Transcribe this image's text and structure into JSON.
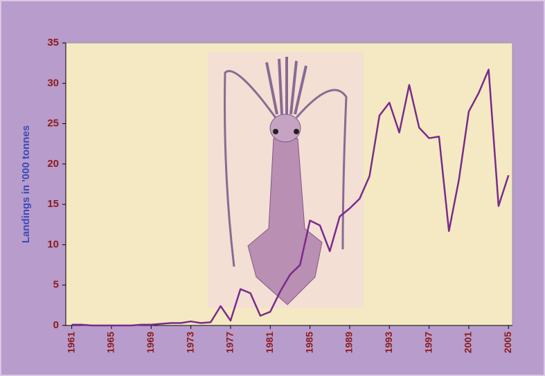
{
  "chart_data": {
    "type": "line",
    "y_axis_label": "Landings in '000 tonnes",
    "x": [
      1961,
      1962,
      1963,
      1964,
      1965,
      1966,
      1967,
      1968,
      1969,
      1970,
      1971,
      1972,
      1973,
      1974,
      1975,
      1976,
      1977,
      1978,
      1979,
      1980,
      1981,
      1982,
      1983,
      1984,
      1985,
      1986,
      1987,
      1988,
      1989,
      1990,
      1991,
      1992,
      1993,
      1994,
      1995,
      1996,
      1997,
      1998,
      1999,
      2000,
      2001,
      2002,
      2003,
      2004,
      2005
    ],
    "series": [
      {
        "color": "#7a2a8c",
        "values": [
          0.1,
          0.1,
          0,
          0,
          0,
          0,
          0,
          0.1,
          0.1,
          0.2,
          0.3,
          0.3,
          0.5,
          0.3,
          0.4,
          2.4,
          0.6,
          4.5,
          4.0,
          1.2,
          1.7,
          4.2,
          6.3,
          7.5,
          13.0,
          12.4,
          9.2,
          13.5,
          14.5,
          15.7,
          18.5,
          26.0,
          27.6,
          23.9,
          29.8,
          24.5,
          23.2,
          23.4,
          11.7,
          18.0,
          26.5,
          28.8,
          31.7,
          14.8,
          18.6
        ]
      }
    ],
    "xlim": [
      1960.4,
      2005.4
    ],
    "xticks": [
      1961,
      1965,
      1969,
      1973,
      1977,
      1981,
      1985,
      1989,
      1993,
      1997,
      2001,
      2005
    ],
    "ylim": [
      0,
      35
    ],
    "yticks": [
      0,
      5,
      10,
      15,
      20,
      25,
      30,
      35
    ]
  }
}
